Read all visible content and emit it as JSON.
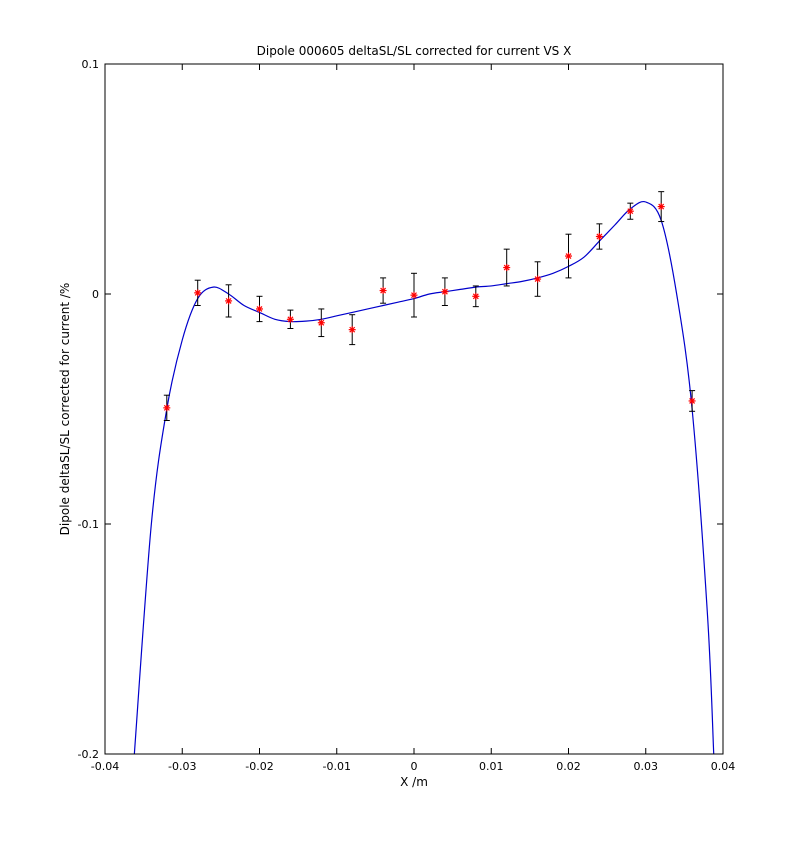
{
  "chart_data": {
    "type": "scatter",
    "title": "Dipole 000605 deltaSL/SL corrected for current VS X",
    "xlabel": "X /m",
    "ylabel": "Dipole deltaSL/SL corrected for current /%",
    "xlim": [
      -0.04,
      0.04
    ],
    "ylim": [
      -0.2,
      0.1
    ],
    "x_ticks": [
      -0.04,
      -0.03,
      -0.02,
      -0.01,
      0,
      0.01,
      0.02,
      0.03,
      0.04
    ],
    "x_tick_labels": [
      "-0.04",
      "-0.03",
      "-0.02",
      "-0.01",
      "0",
      "0.01",
      "0.02",
      "0.03",
      "0.04"
    ],
    "y_ticks": [
      -0.2,
      -0.1,
      0,
      0.1
    ],
    "y_tick_labels": [
      "-0.2",
      "-0.1",
      "0",
      "0.1"
    ],
    "grid": false,
    "legend": "none",
    "series": [
      {
        "kind": "errorbar-points",
        "color": "#ff0000",
        "errorbar_color": "#000000",
        "marker": "*",
        "x": [
          -0.032,
          -0.028,
          -0.024,
          -0.02,
          -0.016,
          -0.012,
          -0.008,
          -0.004,
          0,
          0.004,
          0.008,
          0.012,
          0.016,
          0.02,
          0.024,
          0.028,
          0.032,
          0.036
        ],
        "y": [
          -0.0495,
          0.0005,
          -0.003,
          -0.0065,
          -0.011,
          -0.0125,
          -0.0155,
          0.0015,
          -0.0005,
          0.001,
          -0.001,
          0.0115,
          0.0065,
          0.0165,
          0.025,
          0.036,
          0.038,
          -0.0465
        ],
        "err": [
          0.0055,
          0.0055,
          0.007,
          0.0055,
          0.004,
          0.006,
          0.0065,
          0.0055,
          0.0095,
          0.006,
          0.0045,
          0.008,
          0.0075,
          0.0095,
          0.0055,
          0.0035,
          0.0065,
          0.0045
        ]
      },
      {
        "kind": "fit-curve",
        "color": "#0000cc",
        "x": [
          -0.0362,
          -0.034,
          -0.032,
          -0.03,
          -0.028,
          -0.026,
          -0.024,
          -0.022,
          -0.02,
          -0.018,
          -0.016,
          -0.014,
          -0.012,
          -0.01,
          -0.008,
          -0.006,
          -0.004,
          -0.002,
          0,
          0.002,
          0.004,
          0.006,
          0.008,
          0.01,
          0.012,
          0.014,
          0.016,
          0.018,
          0.02,
          0.022,
          0.024,
          0.026,
          0.028,
          0.03,
          0.032,
          0.034,
          0.036,
          0.038,
          0.0388
        ],
        "y": [
          -0.2,
          -0.1,
          -0.05,
          -0.02,
          -0.002,
          0.003,
          0.0,
          -0.005,
          -0.008,
          -0.011,
          -0.012,
          -0.0118,
          -0.011,
          -0.0095,
          -0.008,
          -0.0065,
          -0.005,
          -0.0035,
          -0.002,
          0.0,
          0.001,
          0.002,
          0.003,
          0.0035,
          0.0045,
          0.0055,
          0.007,
          0.009,
          0.012,
          0.016,
          0.023,
          0.03,
          0.037,
          0.04,
          0.032,
          0.0,
          -0.05,
          -0.14,
          -0.2
        ]
      }
    ]
  }
}
